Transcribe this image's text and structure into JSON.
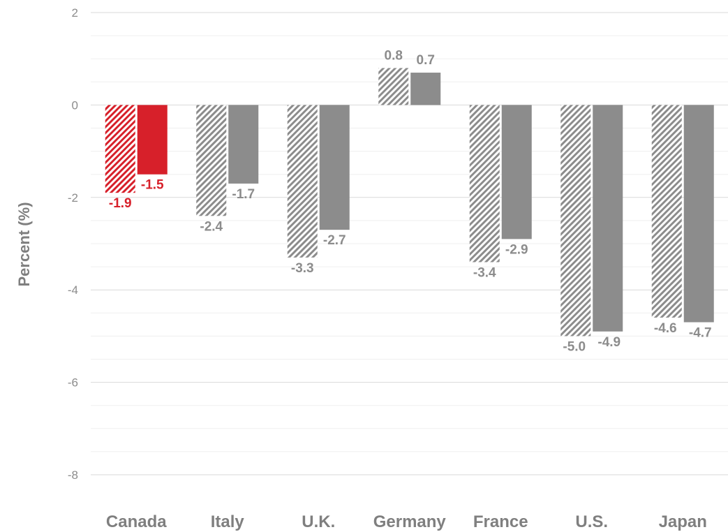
{
  "chart_data": {
    "type": "bar",
    "ylabel": "Percent (%)",
    "ylim": [
      -8,
      2
    ],
    "yticks": [
      2,
      0,
      -2,
      -4,
      -6,
      -8
    ],
    "categories": [
      "Canada",
      "Italy",
      "U.K.",
      "Germany",
      "France",
      "U.S.",
      "Japan"
    ],
    "series": [
      {
        "style": "hatched",
        "values": [
          -1.9,
          -2.4,
          -3.3,
          0.8,
          -3.4,
          -5.0,
          -4.6
        ]
      },
      {
        "style": "solid",
        "values": [
          -1.5,
          -1.7,
          -2.7,
          0.7,
          -2.9,
          -4.9,
          -4.7
        ]
      }
    ],
    "highlight_category": "Canada",
    "colors": {
      "highlight": "#d7202a",
      "default": "#8c8c8c",
      "gridline": "#d9d9d9"
    },
    "grid": true,
    "legend": "none"
  }
}
